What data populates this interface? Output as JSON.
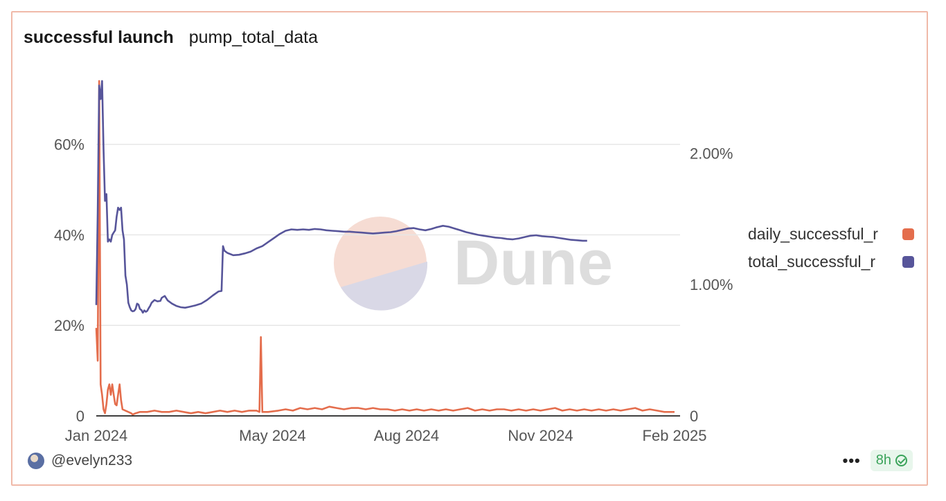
{
  "header": {
    "title": "successful launch",
    "subtitle": "pump_total_data"
  },
  "footer": {
    "user": "@evelyn233",
    "more": "•••",
    "refresh_age": "8h"
  },
  "watermark": {
    "text": "Dune"
  },
  "colors": {
    "daily": "#e46d4c",
    "total": "#57559a",
    "grid": "#e6e6e6",
    "axis": "#222222"
  },
  "chart_data": {
    "type": "line",
    "title": "successful launch",
    "xlabel": "",
    "ylabel": "",
    "x_ticks": [
      "Jan 2024",
      "May 2024",
      "Aug 2024",
      "Nov 2024",
      "Feb 2025"
    ],
    "x_tick_days": [
      0,
      121,
      213,
      305,
      397
    ],
    "x_range_days": [
      0,
      397
    ],
    "y_left": {
      "ticks": [
        "0",
        "20%",
        "40%",
        "60%"
      ],
      "tick_values": [
        0,
        20,
        40,
        60
      ],
      "range": [
        0,
        74
      ]
    },
    "y_right": {
      "ticks": [
        "0",
        "1.00%",
        "2.00%"
      ],
      "tick_values": [
        0,
        1.0,
        2.0
      ],
      "range": [
        0,
        2.55
      ]
    },
    "series": [
      {
        "name": "daily_successful_rate",
        "legend_label": "daily_successful_r",
        "axis": "right",
        "color": "#e46d4c",
        "points": [
          [
            0,
            0.67
          ],
          [
            1,
            0.42
          ],
          [
            2,
            2.55
          ],
          [
            3,
            0.24
          ],
          [
            4,
            0.16
          ],
          [
            5,
            0.05
          ],
          [
            6,
            0.02
          ],
          [
            7,
            0.09
          ],
          [
            8,
            0.2
          ],
          [
            9,
            0.24
          ],
          [
            10,
            0.16
          ],
          [
            11,
            0.24
          ],
          [
            12,
            0.16
          ],
          [
            13,
            0.09
          ],
          [
            14,
            0.08
          ],
          [
            15,
            0.16
          ],
          [
            16,
            0.24
          ],
          [
            17,
            0.12
          ],
          [
            18,
            0.05
          ],
          [
            20,
            0.04
          ],
          [
            22,
            0.03
          ],
          [
            24,
            0.02
          ],
          [
            25,
            0.01
          ],
          [
            27,
            0.02
          ],
          [
            30,
            0.03
          ],
          [
            35,
            0.03
          ],
          [
            40,
            0.04
          ],
          [
            45,
            0.03
          ],
          [
            50,
            0.03
          ],
          [
            55,
            0.04
          ],
          [
            60,
            0.03
          ],
          [
            65,
            0.02
          ],
          [
            70,
            0.03
          ],
          [
            75,
            0.02
          ],
          [
            80,
            0.03
          ],
          [
            85,
            0.04
          ],
          [
            90,
            0.03
          ],
          [
            95,
            0.04
          ],
          [
            100,
            0.03
          ],
          [
            105,
            0.04
          ],
          [
            110,
            0.04
          ],
          [
            112,
            0.03
          ],
          [
            113,
            0.6
          ],
          [
            114,
            0.03
          ],
          [
            118,
            0.03
          ],
          [
            125,
            0.04
          ],
          [
            130,
            0.05
          ],
          [
            135,
            0.04
          ],
          [
            140,
            0.06
          ],
          [
            145,
            0.05
          ],
          [
            150,
            0.06
          ],
          [
            155,
            0.05
          ],
          [
            160,
            0.07
          ],
          [
            165,
            0.06
          ],
          [
            170,
            0.05
          ],
          [
            175,
            0.06
          ],
          [
            180,
            0.06
          ],
          [
            185,
            0.05
          ],
          [
            190,
            0.06
          ],
          [
            195,
            0.05
          ],
          [
            200,
            0.05
          ],
          [
            205,
            0.04
          ],
          [
            210,
            0.05
          ],
          [
            215,
            0.04
          ],
          [
            220,
            0.05
          ],
          [
            225,
            0.04
          ],
          [
            230,
            0.05
          ],
          [
            235,
            0.04
          ],
          [
            240,
            0.05
          ],
          [
            245,
            0.04
          ],
          [
            250,
            0.05
          ],
          [
            255,
            0.06
          ],
          [
            260,
            0.04
          ],
          [
            265,
            0.05
          ],
          [
            270,
            0.04
          ],
          [
            275,
            0.05
          ],
          [
            280,
            0.05
          ],
          [
            285,
            0.04
          ],
          [
            290,
            0.05
          ],
          [
            295,
            0.04
          ],
          [
            300,
            0.05
          ],
          [
            305,
            0.04
          ],
          [
            310,
            0.05
          ],
          [
            315,
            0.06
          ],
          [
            320,
            0.04
          ],
          [
            325,
            0.05
          ],
          [
            330,
            0.04
          ],
          [
            335,
            0.05
          ],
          [
            340,
            0.04
          ],
          [
            345,
            0.05
          ],
          [
            350,
            0.04
          ],
          [
            355,
            0.05
          ],
          [
            360,
            0.04
          ],
          [
            365,
            0.05
          ],
          [
            370,
            0.06
          ],
          [
            375,
            0.04
          ],
          [
            380,
            0.05
          ],
          [
            385,
            0.04
          ],
          [
            390,
            0.03
          ],
          [
            395,
            0.03
          ],
          [
            397,
            0.03
          ]
        ]
      },
      {
        "name": "total_successful_rate",
        "legend_label": "total_successful_r",
        "axis": "left",
        "color": "#57559a",
        "points": [
          [
            0,
            24.5
          ],
          [
            1,
            45
          ],
          [
            2,
            73
          ],
          [
            3,
            70
          ],
          [
            4,
            74
          ],
          [
            5,
            59
          ],
          [
            6,
            47.5
          ],
          [
            7,
            49
          ],
          [
            8,
            38.5
          ],
          [
            9,
            39
          ],
          [
            10,
            38.5
          ],
          [
            11,
            40
          ],
          [
            12,
            40.5
          ],
          [
            13,
            41
          ],
          [
            14,
            44
          ],
          [
            15,
            46
          ],
          [
            16,
            45.5
          ],
          [
            17,
            46
          ],
          [
            18,
            41
          ],
          [
            19,
            39
          ],
          [
            20,
            31
          ],
          [
            21,
            29
          ],
          [
            22,
            25
          ],
          [
            23,
            24
          ],
          [
            24,
            23.3
          ],
          [
            25,
            23.1
          ],
          [
            26,
            23.2
          ],
          [
            27,
            23.6
          ],
          [
            28,
            24.8
          ],
          [
            29,
            24.6
          ],
          [
            30,
            23.6
          ],
          [
            31,
            23.4
          ],
          [
            32,
            22.8
          ],
          [
            33,
            23.3
          ],
          [
            34,
            23
          ],
          [
            35,
            23.2
          ],
          [
            36,
            23.8
          ],
          [
            37,
            24.3
          ],
          [
            38,
            25
          ],
          [
            40,
            25.6
          ],
          [
            42,
            25.3
          ],
          [
            44,
            25.4
          ],
          [
            45,
            26.1
          ],
          [
            47,
            26.5
          ],
          [
            49,
            25.5
          ],
          [
            52,
            24.8
          ],
          [
            55,
            24.3
          ],
          [
            58,
            24
          ],
          [
            61,
            23.9
          ],
          [
            64,
            24.1
          ],
          [
            68,
            24.4
          ],
          [
            72,
            24.8
          ],
          [
            76,
            25.6
          ],
          [
            80,
            26.6
          ],
          [
            84,
            27.5
          ],
          [
            86,
            27.6
          ],
          [
            87,
            37.5
          ],
          [
            88,
            36.5
          ],
          [
            90,
            36
          ],
          [
            94,
            35.5
          ],
          [
            98,
            35.6
          ],
          [
            102,
            35.9
          ],
          [
            106,
            36.3
          ],
          [
            110,
            37
          ],
          [
            114,
            37.5
          ],
          [
            118,
            38.4
          ],
          [
            122,
            39.3
          ],
          [
            126,
            40.2
          ],
          [
            130,
            40.9
          ],
          [
            134,
            41.2
          ],
          [
            138,
            41.1
          ],
          [
            142,
            41.2
          ],
          [
            146,
            41.1
          ],
          [
            150,
            41.3
          ],
          [
            154,
            41.2
          ],
          [
            158,
            41
          ],
          [
            162,
            40.9
          ],
          [
            166,
            40.8
          ],
          [
            170,
            40.7
          ],
          [
            174,
            40.7
          ],
          [
            178,
            40.6
          ],
          [
            182,
            40.5
          ],
          [
            186,
            40.4
          ],
          [
            190,
            40.3
          ],
          [
            194,
            40.4
          ],
          [
            198,
            40.5
          ],
          [
            202,
            40.6
          ],
          [
            206,
            40.8
          ],
          [
            210,
            41.1
          ],
          [
            214,
            41.4
          ],
          [
            218,
            41.5
          ],
          [
            222,
            41.2
          ],
          [
            226,
            41
          ],
          [
            230,
            41.3
          ],
          [
            234,
            41.7
          ],
          [
            238,
            42
          ],
          [
            242,
            41.8
          ],
          [
            246,
            41.4
          ],
          [
            250,
            41
          ],
          [
            254,
            40.6
          ],
          [
            258,
            40.3
          ],
          [
            262,
            40
          ],
          [
            266,
            39.8
          ],
          [
            270,
            39.6
          ],
          [
            274,
            39.4
          ],
          [
            278,
            39.3
          ],
          [
            282,
            39.1
          ],
          [
            286,
            39
          ],
          [
            290,
            39.2
          ],
          [
            294,
            39.5
          ],
          [
            298,
            39.8
          ],
          [
            302,
            39.9
          ],
          [
            306,
            39.7
          ],
          [
            310,
            39.6
          ],
          [
            314,
            39.5
          ],
          [
            318,
            39.3
          ],
          [
            322,
            39.1
          ],
          [
            326,
            38.9
          ],
          [
            330,
            38.8
          ],
          [
            334,
            38.7
          ],
          [
            337,
            38.7
          ]
        ]
      }
    ]
  }
}
